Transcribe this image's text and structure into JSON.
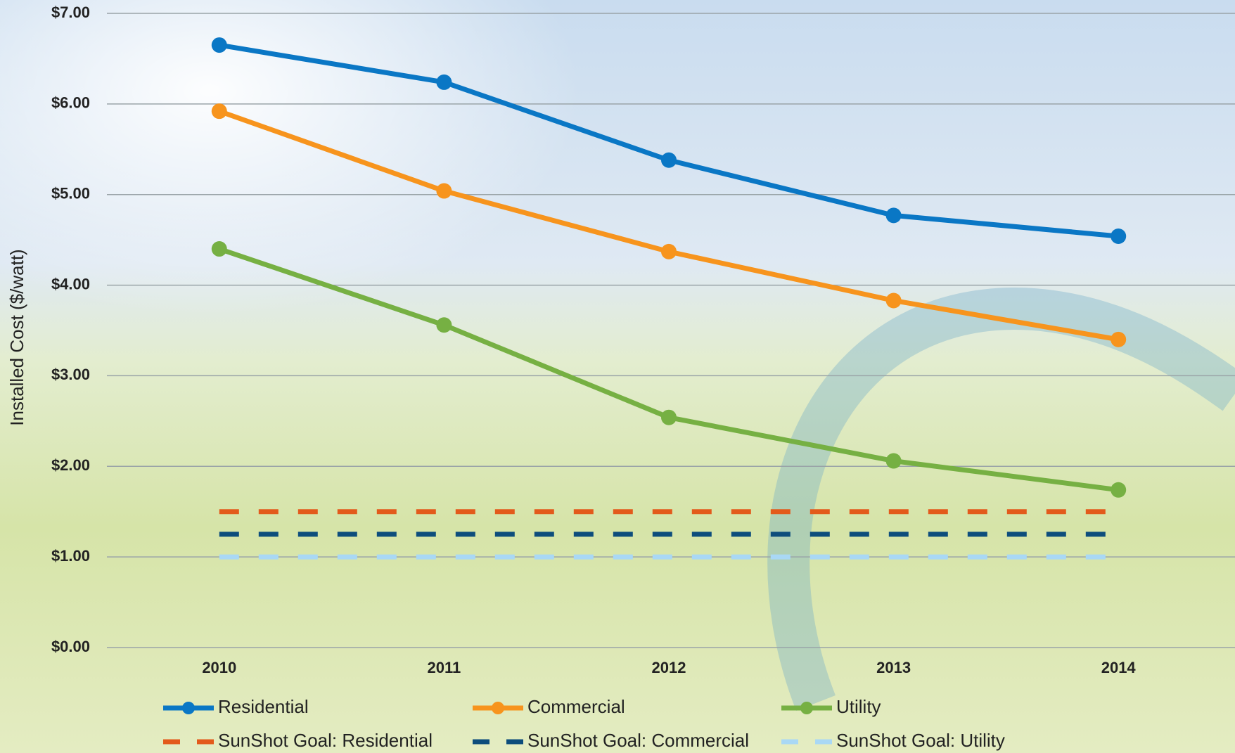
{
  "chart_data": {
    "type": "line",
    "y_label": "Installed Cost ($/watt)",
    "categories": [
      "2010",
      "2011",
      "2012",
      "2013",
      "2014"
    ],
    "ylim": [
      0,
      7
    ],
    "yticks": [
      {
        "value": 0,
        "label": "$0.00"
      },
      {
        "value": 1,
        "label": "$1.00"
      },
      {
        "value": 2,
        "label": "$2.00"
      },
      {
        "value": 3,
        "label": "$3.00"
      },
      {
        "value": 4,
        "label": "$4.00"
      },
      {
        "value": 5,
        "label": "$5.00"
      },
      {
        "value": 6,
        "label": "$6.00"
      },
      {
        "value": 7,
        "label": "$7.00"
      }
    ],
    "grid": true,
    "legend": "bottom",
    "series": [
      {
        "name": "Residential",
        "color": "#0a77c5",
        "line_style": "solid",
        "markers": true,
        "values": [
          6.65,
          6.24,
          5.38,
          4.77,
          4.54
        ]
      },
      {
        "name": "Commercial",
        "color": "#f7941d",
        "line_style": "solid",
        "markers": true,
        "values": [
          5.92,
          5.04,
          4.37,
          3.83,
          3.4
        ]
      },
      {
        "name": "Utility",
        "color": "#76b043",
        "line_style": "solid",
        "markers": true,
        "values": [
          4.4,
          3.56,
          2.54,
          2.06,
          1.74
        ]
      },
      {
        "name": "SunShot Goal: Residential",
        "color": "#e35a1b",
        "line_style": "dashed",
        "markers": false,
        "values": [
          1.5,
          1.5,
          1.5,
          1.5,
          1.5
        ]
      },
      {
        "name": "SunShot Goal: Commercial",
        "color": "#0d4d7c",
        "line_style": "dashed",
        "markers": false,
        "values": [
          1.25,
          1.25,
          1.25,
          1.25,
          1.25
        ]
      },
      {
        "name": "SunShot Goal: Utility",
        "color": "#a9d8f5",
        "line_style": "dashed",
        "markers": false,
        "values": [
          1.0,
          1.0,
          1.0,
          1.0,
          1.0
        ]
      }
    ]
  }
}
